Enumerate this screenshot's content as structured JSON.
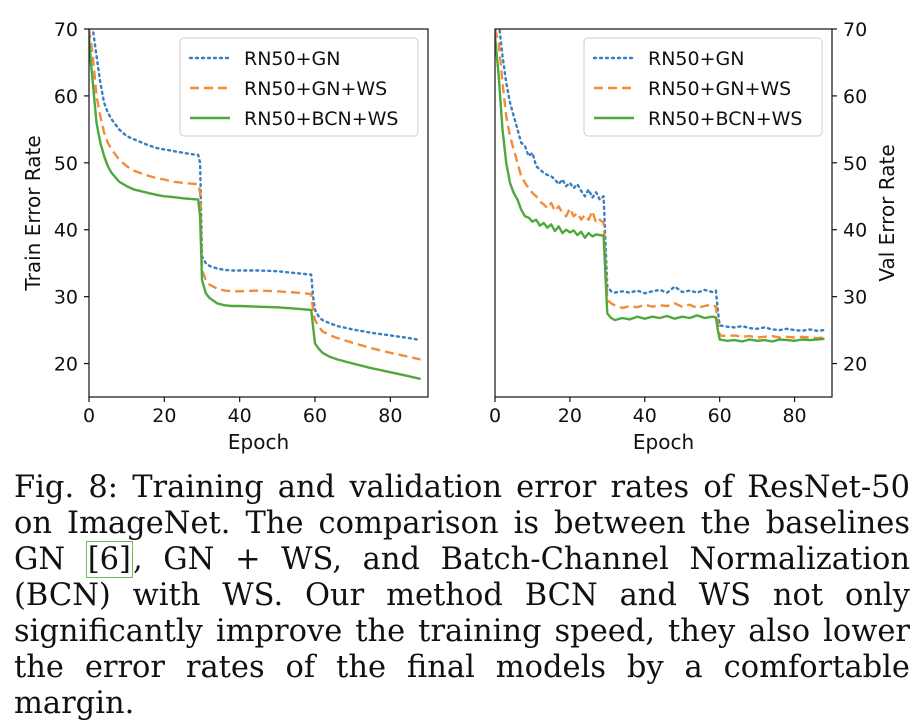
{
  "figure": {
    "chart_data": [
      {
        "type": "line",
        "title": "",
        "xlabel": "Epoch",
        "ylabel": "Train Error Rate",
        "xlim": [
          0,
          90
        ],
        "ylim": [
          15,
          70
        ],
        "xticks": [
          0,
          20,
          40,
          60,
          80
        ],
        "yticks": [
          20,
          30,
          40,
          50,
          60,
          70
        ],
        "ylabel_side": "left",
        "legend_position": "top-right",
        "grid": false,
        "series": [
          {
            "name": "RN50+GN",
            "color": "#3a7ebf",
            "style": "dotted",
            "x": [
              0,
              0.5,
              1,
              2,
              3,
              4,
              5,
              6,
              8,
              10,
              12,
              15,
              18,
              20,
              22,
              25,
              27,
              29,
              29.5,
              30,
              31,
              32,
              34,
              36,
              38,
              40,
              45,
              50,
              55,
              59,
              59.5,
              60,
              61,
              62,
              64,
              66,
              70,
              75,
              80,
              85,
              88
            ],
            "y": [
              71,
              72,
              70,
              66,
              62,
              59,
              57.5,
              56.5,
              55,
              54,
              53.5,
              52.8,
              52.2,
              52,
              51.8,
              51.5,
              51.3,
              51.2,
              50,
              36,
              35,
              34.6,
              34.2,
              34,
              33.9,
              33.9,
              33.9,
              33.8,
              33.5,
              33.3,
              30,
              28,
              27,
              26.5,
              26,
              25.6,
              25.1,
              24.6,
              24.2,
              23.8,
              23.5
            ]
          },
          {
            "name": "RN50+GN+WS",
            "color": "#f28c38",
            "style": "dashed",
            "x": [
              0,
              0.5,
              1,
              2,
              3,
              4,
              5,
              6,
              8,
              10,
              12,
              15,
              18,
              20,
              22,
              25,
              27,
              29,
              29.5,
              30,
              31,
              32,
              34,
              36,
              38,
              40,
              45,
              50,
              55,
              59,
              59.5,
              60,
              61,
              62,
              64,
              66,
              70,
              75,
              80,
              85,
              88
            ],
            "y": [
              70,
              68,
              66,
              60,
              57,
              54.5,
              53,
              52,
              50.5,
              49.5,
              48.8,
              48.2,
              47.7,
              47.5,
              47.2,
              47,
              46.9,
              46.8,
              45.5,
              34,
              32.5,
              31.8,
              31.2,
              30.9,
              30.8,
              30.8,
              30.9,
              30.8,
              30.6,
              30.4,
              28,
              26.5,
              25.5,
              24.8,
              24.2,
              23.8,
              23.1,
              22.3,
              21.6,
              21,
              20.6
            ]
          },
          {
            "name": "RN50+BCN+WS",
            "color": "#4fa83d",
            "style": "solid",
            "x": [
              0,
              0.5,
              1,
              2,
              3,
              4,
              5,
              6,
              8,
              10,
              12,
              15,
              18,
              20,
              22,
              25,
              27,
              29,
              29.5,
              30,
              31,
              32,
              34,
              36,
              38,
              40,
              45,
              50,
              55,
              59,
              59.5,
              60,
              61,
              62,
              64,
              66,
              70,
              75,
              80,
              85,
              88
            ],
            "y": [
              69,
              65,
              62,
              56,
              53,
              51,
              49.5,
              48.5,
              47.2,
              46.5,
              46,
              45.6,
              45.2,
              45,
              44.9,
              44.7,
              44.6,
              44.5,
              42,
              32.5,
              30.5,
              29.8,
              29,
              28.7,
              28.6,
              28.6,
              28.5,
              28.4,
              28.2,
              28,
              25.5,
              23,
              22.2,
              21.6,
              21,
              20.6,
              20,
              19.3,
              18.7,
              18.1,
              17.7
            ]
          }
        ]
      },
      {
        "type": "line",
        "title": "",
        "xlabel": "Epoch",
        "ylabel": "Val Error Rate",
        "xlim": [
          0,
          90
        ],
        "ylim": [
          15,
          70
        ],
        "xticks": [
          0,
          20,
          40,
          60,
          80
        ],
        "yticks": [
          20,
          30,
          40,
          50,
          60,
          70
        ],
        "ylabel_side": "right",
        "legend_position": "top-right",
        "grid": false,
        "series": [
          {
            "name": "RN50+GN",
            "color": "#3a7ebf",
            "style": "dotted",
            "x": [
              0,
              1,
              2,
              3,
              4,
              5,
              6,
              7,
              8,
              9,
              10,
              11,
              12,
              13,
              14,
              15,
              16,
              17,
              18,
              19,
              20,
              21,
              22,
              23,
              24,
              25,
              26,
              27,
              28,
              29,
              29.5,
              30,
              31,
              32,
              34,
              36,
              38,
              40,
              42,
              44,
              46,
              48,
              50,
              52,
              54,
              56,
              58,
              59,
              59.5,
              60,
              62,
              64,
              66,
              68,
              70,
              72,
              74,
              76,
              78,
              80,
              82,
              84,
              86,
              88
            ],
            "y": [
              71,
              71,
              66,
              62,
              59,
              57,
              55,
              53,
              52.5,
              51,
              51.5,
              49.5,
              49,
              48.5,
              48.2,
              48,
              47.5,
              46.8,
              47.5,
              46.5,
              47,
              46.2,
              46.8,
              45.8,
              45,
              46,
              44.8,
              45.6,
              44.5,
              45,
              38,
              31.5,
              30.8,
              30.6,
              30.8,
              30.6,
              30.9,
              30.5,
              30.8,
              31,
              30.6,
              31.5,
              30.7,
              30.9,
              30.6,
              31,
              30.7,
              30.9,
              28,
              25.7,
              25.5,
              25.4,
              25.6,
              25.3,
              25.2,
              25.4,
              25.1,
              25,
              25.2,
              25,
              24.9,
              25.1,
              24.9,
              25
            ]
          },
          {
            "name": "RN50+GN+WS",
            "color": "#f28c38",
            "style": "dashed",
            "x": [
              0,
              1,
              2,
              3,
              4,
              5,
              6,
              7,
              8,
              9,
              10,
              11,
              12,
              13,
              14,
              15,
              16,
              17,
              18,
              19,
              20,
              21,
              22,
              23,
              24,
              25,
              26,
              27,
              28,
              29,
              29.5,
              30,
              31,
              32,
              34,
              36,
              38,
              40,
              42,
              44,
              46,
              48,
              50,
              52,
              54,
              56,
              58,
              59,
              59.5,
              60,
              62,
              64,
              66,
              68,
              70,
              72,
              74,
              76,
              78,
              80,
              82,
              84,
              86,
              88
            ],
            "y": [
              70,
              68,
              62,
              57,
              54,
              52,
              50,
              48,
              47,
              46.2,
              45.5,
              45,
              44.2,
              43.8,
              43.2,
              44,
              42.8,
              43.5,
              42.5,
              42,
              43.2,
              42,
              42.5,
              41.5,
              42.2,
              41.5,
              42.8,
              41,
              41.5,
              41,
              35,
              29.5,
              29,
              28.7,
              28.3,
              28.6,
              28.4,
              28.8,
              28.5,
              28.7,
              28.6,
              29,
              28.5,
              28.8,
              28.3,
              28.6,
              28.8,
              28.5,
              26,
              24.2,
              24.1,
              24.2,
              24,
              24.1,
              23.9,
              24,
              24.1,
              23.9,
              24,
              23.9,
              24,
              23.9,
              23.8,
              23.9
            ]
          },
          {
            "name": "RN50+BCN+WS",
            "color": "#4fa83d",
            "style": "solid",
            "x": [
              0,
              1,
              2,
              3,
              4,
              5,
              6,
              7,
              8,
              9,
              10,
              11,
              12,
              13,
              14,
              15,
              16,
              17,
              18,
              19,
              20,
              21,
              22,
              23,
              24,
              25,
              26,
              27,
              28,
              29,
              29.5,
              30,
              31,
              32,
              34,
              36,
              38,
              40,
              42,
              44,
              46,
              48,
              50,
              52,
              54,
              56,
              58,
              59,
              59.5,
              60,
              62,
              64,
              66,
              68,
              70,
              72,
              74,
              76,
              78,
              80,
              82,
              84,
              86,
              88
            ],
            "y": [
              69,
              63,
              55,
              50,
              47,
              45.5,
              44.5,
              43,
              42,
              41.8,
              41.2,
              41.5,
              40.6,
              41,
              40.3,
              40.8,
              39.8,
              40.5,
              39.5,
              40,
              39.6,
              39.9,
              39.2,
              39.7,
              38.8,
              39.5,
              39,
              39.3,
              39.2,
              39.1,
              33,
              27.5,
              26.8,
              26.5,
              26.8,
              26.6,
              27,
              26.7,
              27,
              26.8,
              27.1,
              26.7,
              27,
              26.8,
              27.2,
              26.8,
              27,
              26.9,
              25,
              23.6,
              23.4,
              23.5,
              23.3,
              23.6,
              23.4,
              23.5,
              23.3,
              23.6,
              23.5,
              23.4,
              23.6,
              23.5,
              23.6,
              23.7
            ]
          }
        ]
      }
    ]
  },
  "caption": {
    "label": "Fig. 8:",
    "text_before_cite": "Training and validation error rates of ResNet-50 on ImageNet. The comparison is between the baselines GN",
    "cite": "[6]",
    "text_after_cite": ", GN + WS, and Batch-Channel Normalization (BCN) with WS. Our method BCN and WS not only significantly improve the training speed, they also lower the error rates of the final models by a comfortable margin."
  }
}
